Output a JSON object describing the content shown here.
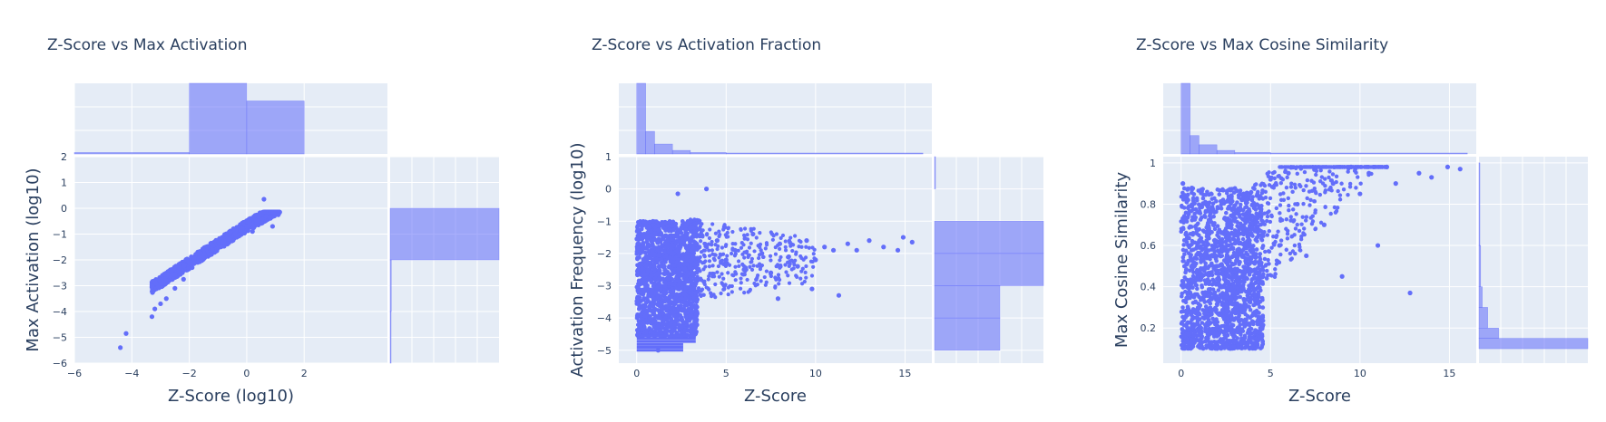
{
  "chart_data": [
    {
      "type": "scatter",
      "title": "Z-Score vs Max Activation",
      "xlabel": "Z-Score (log10)",
      "ylabel": "Max Activation (log10)",
      "xlim": [
        -6,
        4.9
      ],
      "ylim": [
        -6,
        2
      ],
      "xticks": [
        -6,
        -4,
        -2,
        0,
        2
      ],
      "yticks": [
        -6,
        -5,
        -4,
        -3,
        -2,
        -1,
        0,
        1,
        2
      ],
      "series": [
        {
          "points": [
            [
              -4.4,
              -5.4
            ],
            [
              -4.2,
              -4.85
            ],
            [
              -3.3,
              -4.2
            ],
            [
              -3.2,
              -3.9
            ],
            [
              -3.0,
              -3.7
            ],
            [
              -2.8,
              -3.5
            ],
            [
              -2.5,
              -3.1
            ],
            [
              -2.2,
              -2.75
            ],
            [
              -1.9,
              -2.3
            ],
            [
              -1.6,
              -2.0
            ],
            [
              -1.2,
              -1.6
            ],
            [
              -0.8,
              -1.3
            ],
            [
              -0.4,
              -1.0
            ],
            [
              0.0,
              -0.7
            ],
            [
              0.4,
              -0.5
            ],
            [
              0.8,
              -0.35
            ],
            [
              1.1,
              -0.25
            ],
            [
              0.6,
              0.35
            ],
            [
              -0.6,
              -1.2
            ],
            [
              0.2,
              -0.9
            ],
            [
              0.9,
              -0.7
            ]
          ]
        }
      ],
      "x_marginal_bins": [
        {
          "x0": -6,
          "x1": -2,
          "count": 0.02
        },
        {
          "x0": -2,
          "x1": 0,
          "count": 1.0
        },
        {
          "x0": 0,
          "x1": 2,
          "count": 0.75
        }
      ],
      "y_marginal_bins": [
        {
          "y0": -2,
          "y1": 0,
          "count": 1.0
        },
        {
          "y0": -4,
          "y1": -2,
          "count": 0.01
        },
        {
          "y0": -6,
          "y1": -4,
          "count": 0.005
        }
      ]
    },
    {
      "type": "scatter",
      "title": "Z-Score vs Activation Fraction",
      "xlabel": "Z-Score",
      "ylabel": "Activation Frequency (log10)",
      "xlim": [
        -1,
        16.5
      ],
      "ylim": [
        -5.4,
        1
      ],
      "xticks": [
        0,
        5,
        10,
        15
      ],
      "yticks": [
        -5,
        -4,
        -3,
        -2,
        -1,
        0,
        1
      ],
      "series": [
        {
          "points": [
            [
              0.1,
              -4.5
            ],
            [
              0.5,
              -3.0
            ],
            [
              1.0,
              -2.5
            ],
            [
              1.5,
              -1.5
            ],
            [
              2.0,
              -2.0
            ],
            [
              2.5,
              -1.2
            ],
            [
              3.0,
              -1.0
            ],
            [
              3.5,
              -1.8
            ],
            [
              2.3,
              -0.15
            ],
            [
              3.9,
              0.0
            ],
            [
              4.5,
              -1.6
            ],
            [
              5.0,
              -2.2
            ],
            [
              5.5,
              -1.9
            ],
            [
              6.0,
              -2.5
            ],
            [
              6.5,
              -1.4
            ],
            [
              7.0,
              -2.0
            ],
            [
              7.5,
              -2.6
            ],
            [
              8.0,
              -1.7
            ],
            [
              8.5,
              -2.1
            ],
            [
              9.0,
              -2.4
            ],
            [
              9.5,
              -1.6
            ],
            [
              10.0,
              -2.2
            ],
            [
              10.5,
              -1.8
            ],
            [
              11.0,
              -1.9
            ],
            [
              11.3,
              -3.3
            ],
            [
              11.8,
              -1.7
            ],
            [
              12.3,
              -1.9
            ],
            [
              13.0,
              -1.6
            ],
            [
              13.8,
              -1.8
            ],
            [
              14.6,
              -1.9
            ],
            [
              14.9,
              -1.5
            ],
            [
              15.4,
              -1.65
            ],
            [
              7.9,
              -3.4
            ],
            [
              9.8,
              -3.1
            ],
            [
              4.9,
              -3.0
            ],
            [
              3.1,
              -3.8
            ],
            [
              1.2,
              -5.0
            ],
            [
              2.5,
              -4.6
            ]
          ]
        }
      ],
      "x_marginal_bins": [
        {
          "x0": 0.0,
          "x1": 0.5,
          "count": 1.0
        },
        {
          "x0": 0.5,
          "x1": 1.0,
          "count": 0.32
        },
        {
          "x0": 1.0,
          "x1": 2.0,
          "count": 0.14
        },
        {
          "x0": 2.0,
          "x1": 3.0,
          "count": 0.05
        },
        {
          "x0": 3.0,
          "x1": 5.0,
          "count": 0.02
        },
        {
          "x0": 5.0,
          "x1": 16.0,
          "count": 0.005
        }
      ],
      "y_marginal_bins": [
        {
          "y0": -2,
          "y1": -1,
          "count": 1.0
        },
        {
          "y0": -3,
          "y1": -2,
          "count": 1.0
        },
        {
          "y0": -4,
          "y1": -3,
          "count": 0.6
        },
        {
          "y0": -5,
          "y1": -4,
          "count": 0.6
        },
        {
          "y0": 0,
          "y1": 1,
          "count": 0.005
        }
      ]
    },
    {
      "type": "scatter",
      "title": "Z-Score vs Max Cosine Similarity",
      "xlabel": "Z-Score",
      "ylabel": "Max Cosine Similarity",
      "xlim": [
        -1,
        16.5
      ],
      "ylim": [
        0.03,
        1.03
      ],
      "xticks": [
        0,
        5,
        10,
        15
      ],
      "yticks": [
        0.2,
        0.4,
        0.6,
        0.8,
        1
      ],
      "series": [
        {
          "points": [
            [
              0.1,
              0.9
            ],
            [
              0.5,
              0.6
            ],
            [
              1.0,
              0.3
            ],
            [
              1.5,
              0.7
            ],
            [
              2.0,
              0.5
            ],
            [
              2.5,
              0.2
            ],
            [
              3.0,
              0.65
            ],
            [
              3.5,
              0.85
            ],
            [
              4.0,
              0.4
            ],
            [
              4.5,
              0.75
            ],
            [
              5.0,
              0.92
            ],
            [
              5.5,
              0.6
            ],
            [
              6.0,
              0.95
            ],
            [
              6.5,
              0.8
            ],
            [
              7.0,
              0.55
            ],
            [
              7.5,
              0.97
            ],
            [
              8.0,
              0.7
            ],
            [
              8.5,
              0.9
            ],
            [
              9.0,
              0.45
            ],
            [
              9.5,
              0.98
            ],
            [
              10.0,
              0.85
            ],
            [
              10.5,
              0.95
            ],
            [
              11.0,
              0.6
            ],
            [
              11.5,
              0.98
            ],
            [
              12.0,
              0.9
            ],
            [
              12.8,
              0.37
            ],
            [
              13.3,
              0.95
            ],
            [
              14.0,
              0.93
            ],
            [
              14.9,
              0.98
            ],
            [
              15.6,
              0.97
            ]
          ]
        }
      ],
      "x_marginal_bins": [
        {
          "x0": 0.0,
          "x1": 0.5,
          "count": 1.0
        },
        {
          "x0": 0.5,
          "x1": 1.0,
          "count": 0.26
        },
        {
          "x0": 1.0,
          "x1": 2.0,
          "count": 0.13
        },
        {
          "x0": 2.0,
          "x1": 3.0,
          "count": 0.05
        },
        {
          "x0": 3.0,
          "x1": 5.0,
          "count": 0.02
        },
        {
          "x0": 5.0,
          "x1": 16.0,
          "count": 0.005
        }
      ],
      "y_marginal_bins": [
        {
          "y0": 0.1,
          "y1": 0.15,
          "count": 1.0
        },
        {
          "y0": 0.15,
          "y1": 0.2,
          "count": 0.18
        },
        {
          "y0": 0.2,
          "y1": 0.3,
          "count": 0.08
        },
        {
          "y0": 0.3,
          "y1": 0.4,
          "count": 0.03
        },
        {
          "y0": 0.4,
          "y1": 0.6,
          "count": 0.015
        },
        {
          "y0": 0.6,
          "y1": 1.0,
          "count": 0.005
        }
      ]
    }
  ]
}
